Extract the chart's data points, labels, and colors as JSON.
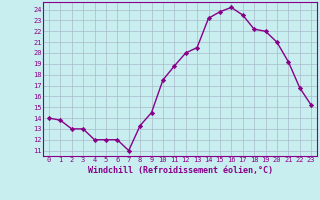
{
  "x": [
    0,
    1,
    2,
    3,
    4,
    5,
    6,
    7,
    8,
    9,
    10,
    11,
    12,
    13,
    14,
    15,
    16,
    17,
    18,
    19,
    20,
    21,
    22,
    23
  ],
  "y": [
    14,
    13.8,
    13,
    13,
    12,
    12,
    12,
    11,
    13.3,
    14.5,
    17.5,
    18.8,
    20,
    20.5,
    23.2,
    23.8,
    24.2,
    23.5,
    22.2,
    22,
    21,
    19.2,
    16.8,
    15.2
  ],
  "line_color": "#880088",
  "marker": "D",
  "marker_size": 2.2,
  "bg_color": "#c8eef0",
  "grid_color": "#aabbcc",
  "xlabel": "Windchill (Refroidissement éolien,°C)",
  "xlim": [
    -0.5,
    23.5
  ],
  "ylim": [
    10.5,
    24.7
  ],
  "yticks": [
    11,
    12,
    13,
    14,
    15,
    16,
    17,
    18,
    19,
    20,
    21,
    22,
    23,
    24
  ],
  "xticks": [
    0,
    1,
    2,
    3,
    4,
    5,
    6,
    7,
    8,
    9,
    10,
    11,
    12,
    13,
    14,
    15,
    16,
    17,
    18,
    19,
    20,
    21,
    22,
    23
  ],
  "tick_label_color": "#880088",
  "tick_label_fontsize": 5.0,
  "xlabel_fontsize": 6.0,
  "line_width": 1.0,
  "spine_color": "#880088"
}
